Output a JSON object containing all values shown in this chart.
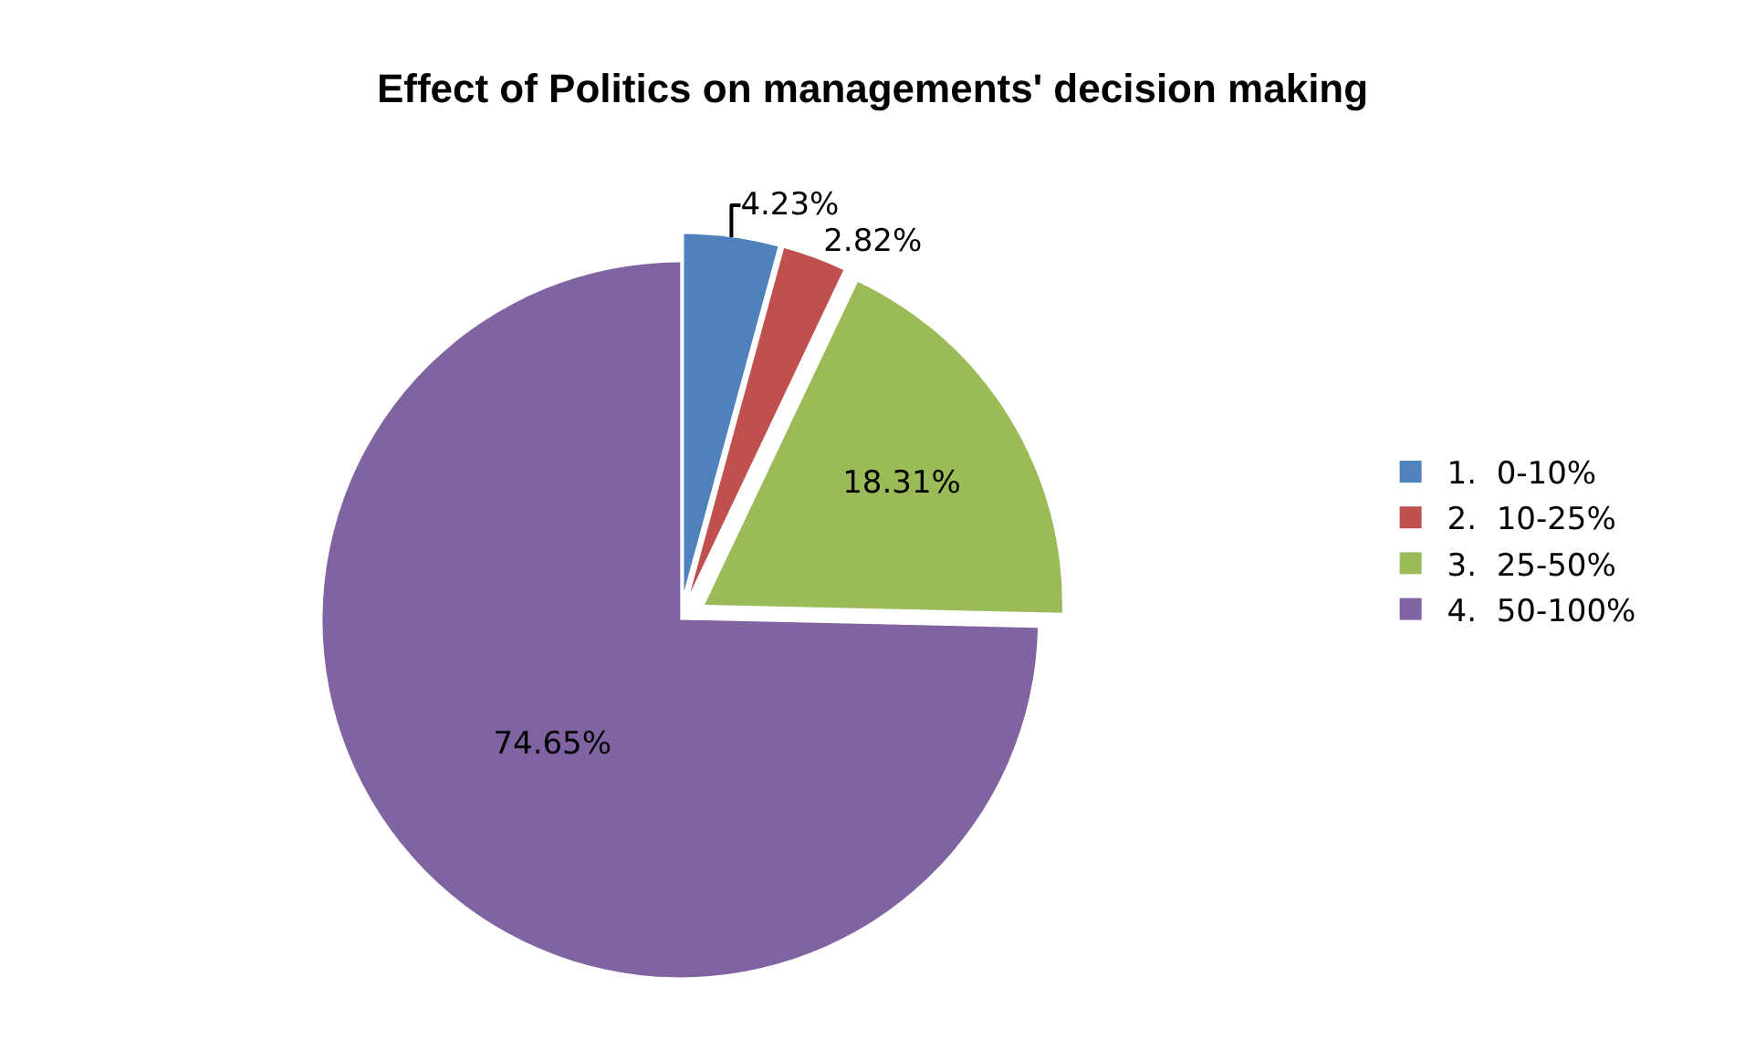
{
  "chart_data": {
    "type": "pie",
    "title": "Effect of Politics on managements' decision making",
    "categories": [
      "1.  0-10%",
      "2.  10-25%",
      "3.  25-50%",
      "4.  50-100%"
    ],
    "values": [
      4.23,
      2.82,
      18.31,
      74.65
    ],
    "value_labels": [
      "4.23%",
      "2.82%",
      "18.31%",
      "74.65%"
    ],
    "colors": [
      "#4f81bd",
      "#c0504d",
      "#9bbb59",
      "#8064a2"
    ],
    "legend": "right"
  }
}
